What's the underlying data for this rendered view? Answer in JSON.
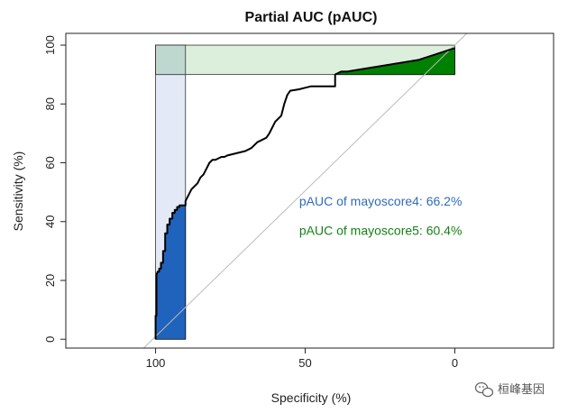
{
  "chart_data": {
    "type": "line",
    "title": "Partial AUC (pAUC)",
    "xlabel": "Specificity (%)",
    "ylabel": "Sensitivity (%)",
    "xlim": [
      130,
      -33
    ],
    "ylim": [
      -3,
      104
    ],
    "x_ticks": [
      100,
      50,
      0
    ],
    "y_ticks": [
      0,
      20,
      40,
      60,
      80,
      100
    ],
    "grid": false,
    "reference_line": {
      "from": [
        104,
        -3
      ],
      "to": [
        -4,
        104
      ],
      "color": "#bbbbbb"
    },
    "series": [
      {
        "name": "mayoscore4",
        "color": "#000000",
        "x": [
          100,
          100,
          99.7,
          99.7,
          99.3,
          98.8,
          98.8,
          98.2,
          98.2,
          97.5,
          97.5,
          96.8,
          96.8,
          96.1,
          96.1,
          95.3,
          95.3,
          94.4,
          94.4,
          93.6,
          93.6,
          92.8,
          92.8,
          92,
          92,
          91.2,
          91.2,
          90,
          90,
          89,
          88,
          87,
          86,
          85,
          84,
          83,
          82,
          81,
          80,
          79,
          78,
          77,
          76,
          74,
          72,
          70,
          68,
          67,
          66,
          64,
          63,
          62,
          61,
          60,
          58,
          57,
          56,
          55,
          52,
          50,
          48,
          45,
          42,
          40,
          40,
          38,
          36,
          33,
          30,
          27,
          24,
          21,
          18,
          15,
          12,
          9,
          6,
          3,
          0
        ],
        "y": [
          0,
          8,
          8,
          22,
          23,
          23,
          24,
          24,
          26,
          26,
          30,
          30,
          36,
          36,
          39,
          39,
          41,
          41,
          43,
          43,
          44,
          44,
          45,
          45,
          45.5,
          45.5,
          45.5,
          45.5,
          47,
          49,
          51,
          52,
          53,
          55,
          56,
          58,
          60,
          61,
          61,
          61.5,
          62,
          62,
          62.5,
          63,
          63.5,
          64,
          65,
          66,
          67,
          68,
          68.5,
          70,
          72,
          74,
          76,
          80,
          83,
          84.5,
          85,
          85.5,
          86,
          86,
          86,
          86,
          90,
          91,
          91,
          91.5,
          92,
          92.5,
          93,
          93.5,
          94,
          94.5,
          95,
          96,
          97,
          98,
          99
        ]
      }
    ],
    "pauc_regions": [
      {
        "name": "mayoscore4",
        "focus": "specificity",
        "range": [
          90,
          100
        ],
        "fill_color": "#2063bd",
        "bg_color": "#e3eaf6"
      },
      {
        "name": "mayoscore5",
        "focus": "sensitivity",
        "range": [
          90,
          100
        ],
        "fill_color": "#008000",
        "bg_color": "#dcefdc"
      }
    ],
    "annotations": [
      {
        "text": "pAUC of mayoscore4: 66.2%",
        "color": "#2f6cb8",
        "x": 52,
        "y": 47
      },
      {
        "text": "pAUC of mayoscore5: 60.4%",
        "color": "#178017",
        "x": 52,
        "y": 37
      }
    ]
  },
  "watermark": {
    "text": "桓峰基因",
    "icon": "wechat-icon"
  }
}
